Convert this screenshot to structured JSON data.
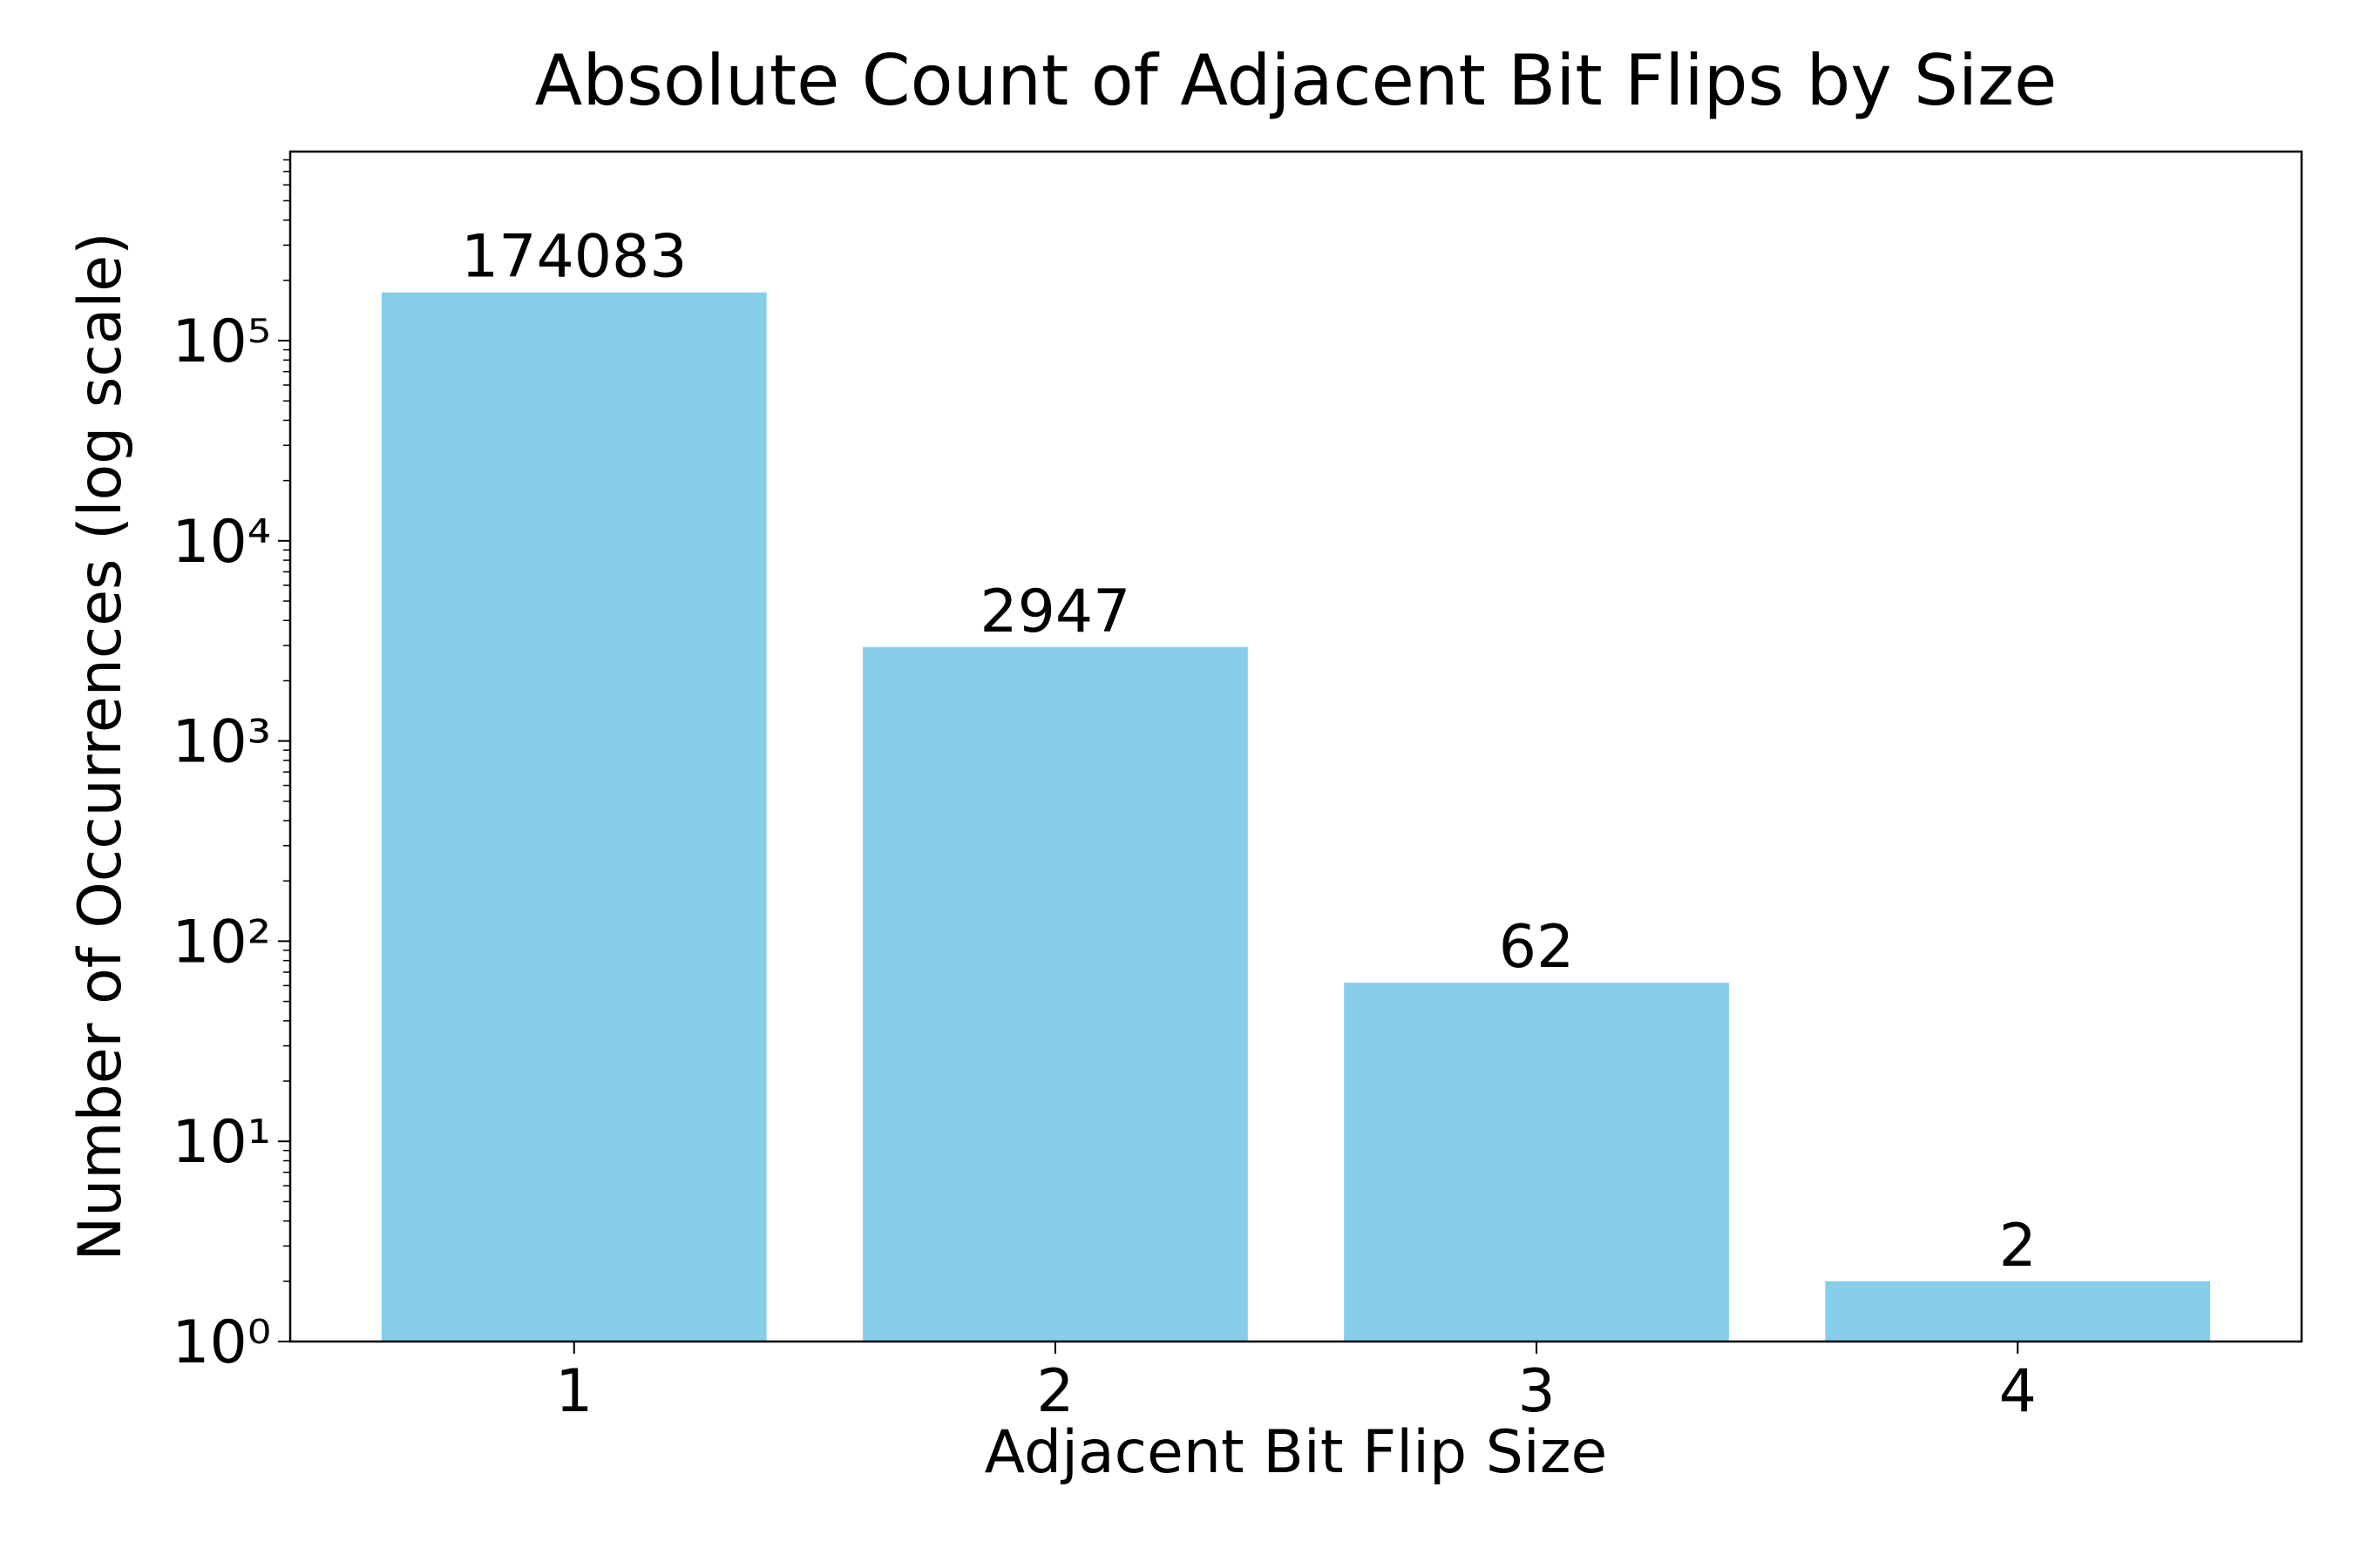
{
  "chart_data": {
    "type": "bar",
    "title": "Absolute Count of Adjacent Bit Flips by Size",
    "x_label": "Adjacent Bit Flip Size",
    "y_label": "Number of Occurrences (log scale)",
    "categories": [
      "1",
      "2",
      "3",
      "4"
    ],
    "values": [
      174083,
      2947,
      62,
      2
    ],
    "color": "#87ceeb",
    "log_scale": true,
    "ylim": [
      1,
      880000
    ],
    "yticks": [
      {
        "value": 1,
        "label": "10⁰"
      },
      {
        "value": 10,
        "label": "10¹"
      },
      {
        "value": 100,
        "label": "10²"
      },
      {
        "value": 1000,
        "label": "10³"
      },
      {
        "value": 10000,
        "label": "10⁴"
      },
      {
        "value": 100000,
        "label": "10⁵"
      }
    ],
    "grid": false
  }
}
